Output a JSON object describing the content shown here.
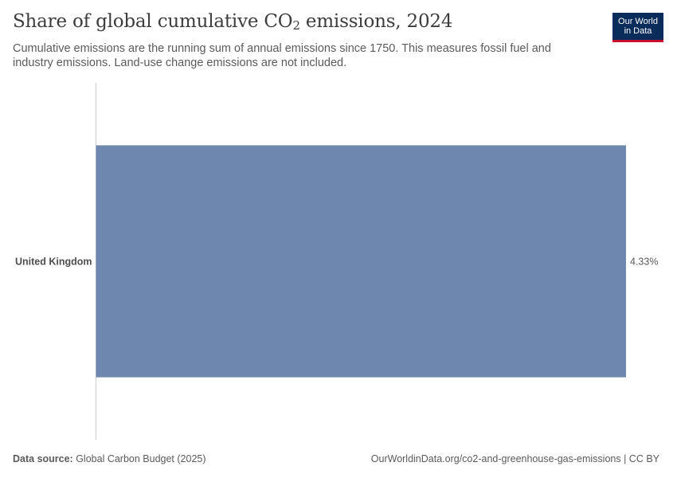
{
  "header": {
    "title_main": "Share of global cumulative CO",
    "title_sub": "2",
    "title_end": " emissions, 2024",
    "subtitle": "Cumulative emissions are the running sum of annual emissions since 1750. This measures fossil fuel and industry emissions. Land-use change emissions are not included."
  },
  "logo": {
    "line1": "Our World",
    "line2": "in Data",
    "background_color": "#0a2c5b",
    "accent_color": "#c8102e"
  },
  "chart_data": {
    "type": "bar",
    "orientation": "horizontal",
    "categories": [
      "United Kingdom"
    ],
    "values": [
      4.33
    ],
    "value_labels": [
      "4.33%"
    ],
    "unit": "%",
    "xlim": [
      0,
      4.33
    ],
    "bar_color": "#6d87ae",
    "grid": false
  },
  "footer": {
    "source_label": "Data source:",
    "source_value": " Global Carbon Budget (2025)",
    "url": "OurWorldinData.org/co2-and-greenhouse-gas-emissions | CC BY"
  }
}
